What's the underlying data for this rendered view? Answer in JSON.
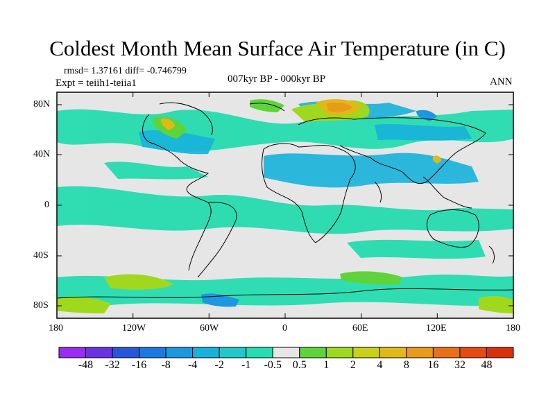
{
  "title": "Coldest Month Mean Surface Air Temperature (in C)",
  "stats": "rmsd= 1.37161 diff= -0.746799",
  "experiment": "Expt = teiih1-teiia1",
  "period": "007kyr BP - 000kyr BP",
  "season": "ANN",
  "map": {
    "projection": "cylindrical equidistant",
    "lon_range": [
      -180,
      180
    ],
    "lat_range": [
      -90,
      90
    ],
    "x_ticks": [
      "180",
      "120W",
      "60W",
      "0",
      "60E",
      "120E",
      "180"
    ],
    "y_ticks": [
      "80N",
      "40N",
      "0",
      "40S",
      "80S"
    ],
    "field": "temperature difference (C)"
  },
  "colorbar": {
    "labels": [
      "-48",
      "-32",
      "-16",
      "-8",
      "-4",
      "-2",
      "-1",
      "-0.5",
      "0.5",
      "1",
      "2",
      "4",
      "8",
      "16",
      "32",
      "48"
    ],
    "colors": [
      "#9a2bf0",
      "#6a33e0",
      "#2757d8",
      "#1b78e0",
      "#1b98de",
      "#17b2dc",
      "#20c8c8",
      "#26dcb0",
      "#e6e6e6",
      "#5ed43a",
      "#a0d81e",
      "#c8d018",
      "#e0b818",
      "#e89a18",
      "#e87018",
      "#e54a10",
      "#d8300a"
    ]
  }
}
